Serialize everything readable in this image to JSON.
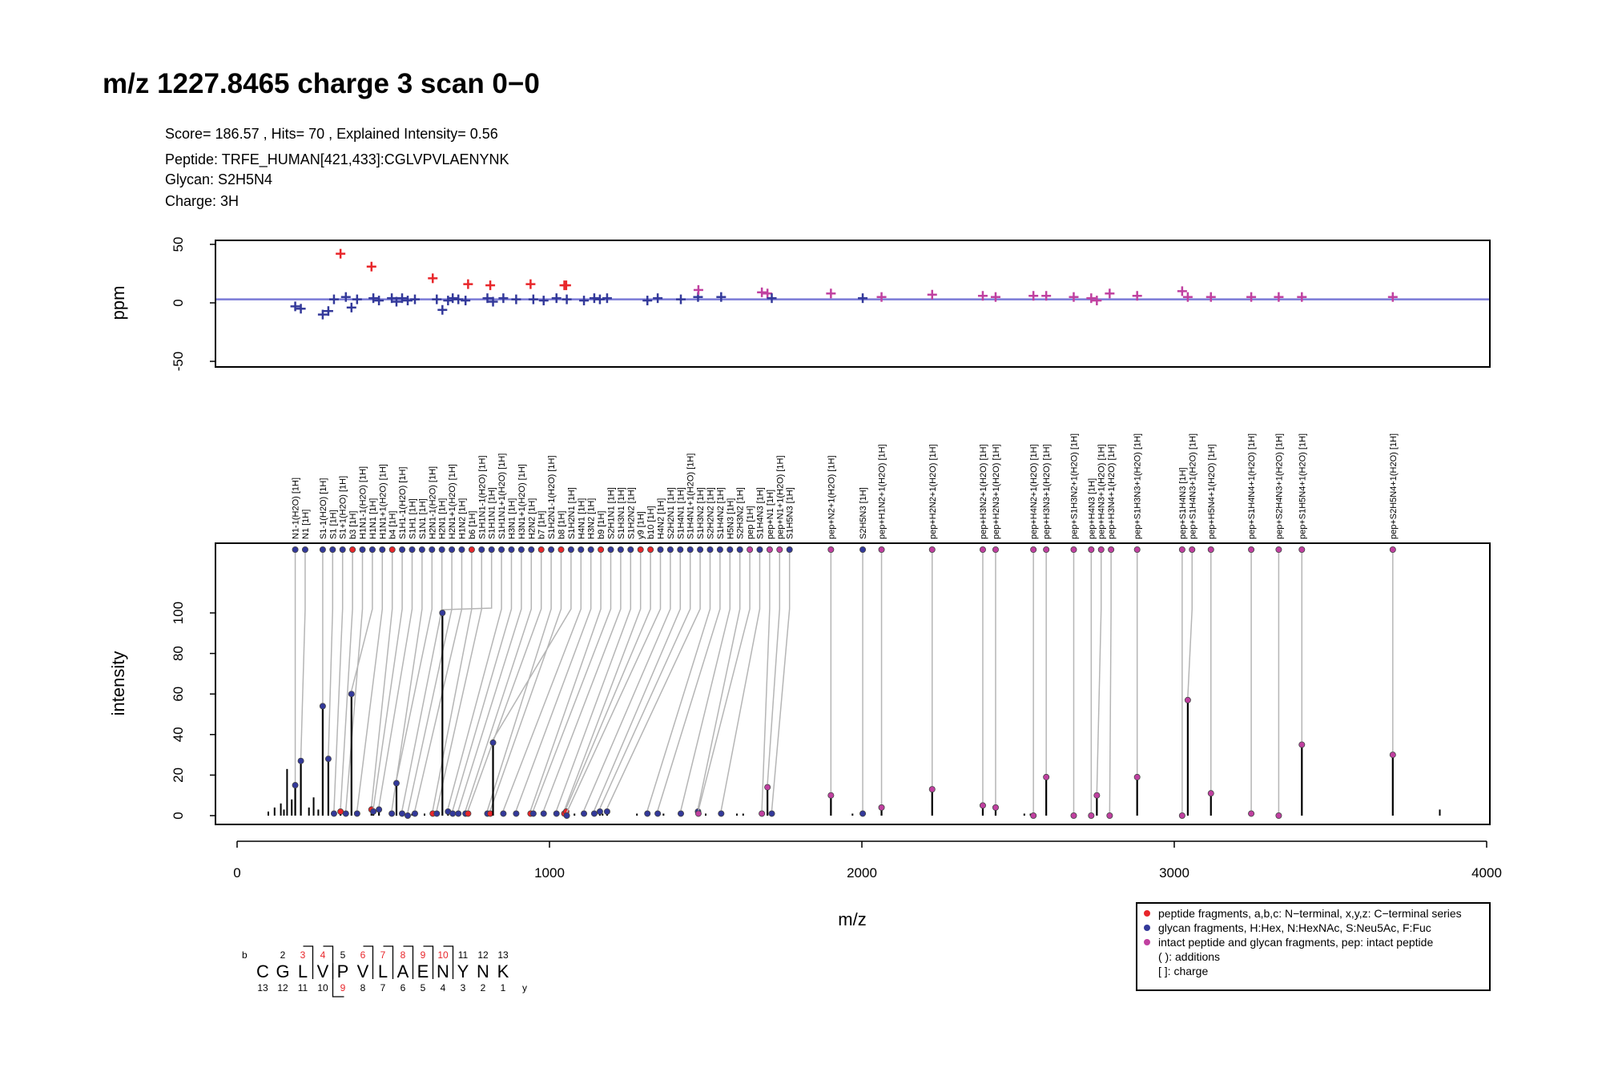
{
  "title": "m/z 1227.8465 charge 3 scan 0−0",
  "info": [
    "Score= 186.57 , Hits= 70 , Explained Intensity= 0.56",
    "Peptide: TRFE_HUMAN[421,433]:CGLVPVLAENYNK",
    "Glycan: S2H5N4",
    "Charge: 3H"
  ],
  "colors": {
    "peptide": "#e8262a",
    "glycan": "#33399a",
    "intact": "#c040a0",
    "connector": "#b5b5b5",
    "ppm_line": "#7a7ad6"
  },
  "chart_data": [
    {
      "type": "scatter",
      "ylabel": "ppm",
      "ylim": [
        -50,
        50
      ],
      "yticks": [
        "-50",
        "0",
        "50"
      ],
      "xlim": [
        0,
        4000
      ],
      "reference_line_ppm": 3
    },
    {
      "type": "bar",
      "xlabel": "m/z",
      "ylabel": "intensity",
      "xlim": [
        0,
        4000
      ],
      "ylim": [
        0,
        100
      ],
      "xticks": [
        "0",
        "1000",
        "2000",
        "3000",
        "4000"
      ],
      "yticks": [
        "0",
        "20",
        "40",
        "60",
        "80",
        "100"
      ],
      "annotations": [
        {
          "label": "N1-1(H2O) [1H]",
          "mz": 186.08,
          "intensity": 15,
          "ppm": -3,
          "type": "glycan"
        },
        {
          "label": "N1 [1H]",
          "mz": 204.09,
          "intensity": 27,
          "ppm": -5,
          "type": "glycan"
        },
        {
          "label": "S1-1(H2O) [1H]",
          "mz": 274.09,
          "intensity": 54,
          "ppm": -10,
          "type": "glycan"
        },
        {
          "label": "S1 [1H]",
          "mz": 292.1,
          "intensity": 28,
          "ppm": -7,
          "type": "glycan"
        },
        {
          "label": "S1+1(H2O) [1H]",
          "mz": 310.11,
          "intensity": 1,
          "ppm": 3,
          "type": "glycan"
        },
        {
          "label": "b3 [1H]",
          "mz": 331.13,
          "intensity": 2,
          "ppm": 42,
          "type": "peptide"
        },
        {
          "label": "H1N1-1(H2O) [1H]",
          "mz": 348.13,
          "intensity": 1,
          "ppm": 5,
          "type": "glycan"
        },
        {
          "label": "H1N1 [1H]",
          "mz": 366.14,
          "intensity": 60,
          "ppm": -4,
          "type": "glycan"
        },
        {
          "label": "H1N1+1(H2O) [1H]",
          "mz": 384.15,
          "intensity": 1,
          "ppm": 3,
          "type": "glycan"
        },
        {
          "label": "b4 [1H]",
          "mz": 430.2,
          "intensity": 3,
          "ppm": 31,
          "type": "peptide"
        },
        {
          "label": "S1H1-1(H2O) [1H]",
          "mz": 436.15,
          "intensity": 2,
          "ppm": 4,
          "type": "glycan"
        },
        {
          "label": "S1H1 [1H]",
          "mz": 454.16,
          "intensity": 3,
          "ppm": 2,
          "type": "glycan"
        },
        {
          "label": "S1N1 [1H]",
          "mz": 495.18,
          "intensity": 1,
          "ppm": 4,
          "type": "glycan"
        },
        {
          "label": "H2N1-1(H2O) [1H]",
          "mz": 510.18,
          "intensity": 16,
          "ppm": 1,
          "type": "glycan"
        },
        {
          "label": "H2N1 [1H]",
          "mz": 528.19,
          "intensity": 1,
          "ppm": 4,
          "type": "glycan"
        },
        {
          "label": "H2N1+1(H2O) [1H]",
          "mz": 546.2,
          "intensity": 0,
          "ppm": 2,
          "type": "glycan"
        },
        {
          "label": "H1N2 [1H]",
          "mz": 569.21,
          "intensity": 1,
          "ppm": 3,
          "type": "glycan"
        },
        {
          "label": "b6 [1H]",
          "mz": 626.33,
          "intensity": 1,
          "ppm": 21,
          "type": "peptide"
        },
        {
          "label": "S1H1N1-1(H2O) [1H]",
          "mz": 639.21,
          "intensity": 1,
          "ppm": 3,
          "type": "glycan"
        },
        {
          "label": "S1H1N1 [1H]",
          "mz": 657.23,
          "intensity": 100,
          "ppm": -6,
          "type": "glycan"
        },
        {
          "label": "S1H1N1+1(H2O) [1H]",
          "mz": 675.24,
          "intensity": 2,
          "ppm": 2,
          "type": "glycan"
        },
        {
          "label": "H3N1 [1H]",
          "mz": 690.24,
          "intensity": 1,
          "ppm": 4,
          "type": "glycan"
        },
        {
          "label": "H3N1+1(H2O) [1H]",
          "mz": 708.25,
          "intensity": 1,
          "ppm": 3,
          "type": "glycan"
        },
        {
          "label": "H2N2 [1H]",
          "mz": 731.27,
          "intensity": 1,
          "ppm": 2,
          "type": "glycan"
        },
        {
          "label": "b7 [1H]",
          "mz": 739.41,
          "intensity": 1,
          "ppm": 16,
          "type": "peptide"
        },
        {
          "label": "S1H2N1-1(H2O) [1H]",
          "mz": 801.27,
          "intensity": 1,
          "ppm": 4,
          "type": "glycan"
        },
        {
          "label": "b8 [1H]",
          "mz": 810.45,
          "intensity": 1,
          "ppm": 15,
          "type": "peptide"
        },
        {
          "label": "S1H2N1 [1H]",
          "mz": 819.28,
          "intensity": 36,
          "ppm": 1,
          "type": "glycan"
        },
        {
          "label": "H4N1 [1H]",
          "mz": 852.3,
          "intensity": 1,
          "ppm": 4,
          "type": "glycan"
        },
        {
          "label": "H3N2 [1H]",
          "mz": 893.32,
          "intensity": 1,
          "ppm": 3,
          "type": "glycan"
        },
        {
          "label": "b9 [1H]",
          "mz": 939.49,
          "intensity": 1,
          "ppm": 16,
          "type": "peptide"
        },
        {
          "label": "S2H1N1 [1H]",
          "mz": 948.32,
          "intensity": 1,
          "ppm": 3,
          "type": "glycan"
        },
        {
          "label": "S1H3N1 [1H]",
          "mz": 981.34,
          "intensity": 1,
          "ppm": 2,
          "type": "glycan"
        },
        {
          "label": "S1H2N2 [1H]",
          "mz": 1022.36,
          "intensity": 1,
          "ppm": 4,
          "type": "glycan"
        },
        {
          "label": "y9 [1H]",
          "mz": 1047.57,
          "intensity": 1,
          "ppm": 15,
          "type": "peptide"
        },
        {
          "label": "b10 [1H]",
          "mz": 1053.53,
          "intensity": 2,
          "ppm": 15,
          "type": "peptide"
        },
        {
          "label": "H4N2 [1H]",
          "mz": 1055.38,
          "intensity": 0,
          "ppm": 3,
          "type": "glycan"
        },
        {
          "label": "S2H2N1 [1H]",
          "mz": 1110.38,
          "intensity": 1,
          "ppm": 2,
          "type": "glycan"
        },
        {
          "label": "S1H4N1 [1H]",
          "mz": 1143.39,
          "intensity": 1,
          "ppm": 4,
          "type": "glycan"
        },
        {
          "label": "S1H4N1+1(H2O) [1H]",
          "mz": 1161.4,
          "intensity": 2,
          "ppm": 3,
          "type": "glycan"
        },
        {
          "label": "S1H3N2 [1H]",
          "mz": 1184.42,
          "intensity": 2,
          "ppm": 4,
          "type": "glycan"
        },
        {
          "label": "S2H2N2 [1H]",
          "mz": 1313.46,
          "intensity": 1,
          "ppm": 2,
          "type": "glycan"
        },
        {
          "label": "S1H4N2 [1H]",
          "mz": 1346.47,
          "intensity": 1,
          "ppm": 4,
          "type": "glycan"
        },
        {
          "label": "H5N3 [1H]",
          "mz": 1420.51,
          "intensity": 1,
          "ppm": 3,
          "type": "glycan"
        },
        {
          "label": "S2H3N2 [1H]",
          "mz": 1475.51,
          "intensity": 2,
          "ppm": 5,
          "type": "glycan"
        },
        {
          "label": "pep [1H]",
          "mz": 1476.73,
          "intensity": 1,
          "ppm": 11,
          "type": "intact"
        },
        {
          "label": "S1H4N3 [1H]",
          "mz": 1549.55,
          "intensity": 1,
          "ppm": 5,
          "type": "glycan"
        },
        {
          "label": "pep+N1 [1H]",
          "mz": 1679.81,
          "intensity": 1,
          "ppm": 9,
          "type": "intact"
        },
        {
          "label": "pep+N1+1(H2O) [1H]",
          "mz": 1697.82,
          "intensity": 14,
          "ppm": 8,
          "type": "intact"
        },
        {
          "label": "S1H5N3 [1H]",
          "mz": 1711.6,
          "intensity": 1,
          "ppm": 4,
          "type": "glycan"
        },
        {
          "label": "pep+N2+1(H2O) [1H]",
          "mz": 1900.9,
          "intensity": 10,
          "ppm": 8,
          "type": "intact"
        },
        {
          "label": "S2H5N3 [1H]",
          "mz": 2002.7,
          "intensity": 1,
          "ppm": 4,
          "type": "glycan"
        },
        {
          "label": "pep+H1N2+1(H2O) [1H]",
          "mz": 2062.95,
          "intensity": 4,
          "ppm": 5,
          "type": "intact"
        },
        {
          "label": "pep+H2N2+1(H2O) [1H]",
          "mz": 2225.0,
          "intensity": 13,
          "ppm": 7,
          "type": "intact"
        },
        {
          "label": "pep+H3N2+1(H2O) [1H]",
          "mz": 2387.06,
          "intensity": 5,
          "ppm": 6,
          "type": "intact"
        },
        {
          "label": "pep+H2N3+1(H2O) [1H]",
          "mz": 2428.08,
          "intensity": 4,
          "ppm": 5,
          "type": "intact"
        },
        {
          "label": "pep+H4N2+1(H2O) [1H]",
          "mz": 2549.11,
          "intensity": 0,
          "ppm": 6,
          "type": "intact"
        },
        {
          "label": "pep+H3N3+1(H2O) [1H]",
          "mz": 2590.14,
          "intensity": 19,
          "ppm": 6,
          "type": "intact"
        },
        {
          "label": "pep+S1H3N2+1(H2O) [1H]",
          "mz": 2678.16,
          "intensity": 0,
          "ppm": 5,
          "type": "intact"
        },
        {
          "label": "pep+H4N3 [1H]",
          "mz": 2734.17,
          "intensity": 0,
          "ppm": 4,
          "type": "intact"
        },
        {
          "label": "pep+H4N3+1(H2O) [1H]",
          "mz": 2752.19,
          "intensity": 10,
          "ppm": 2,
          "type": "intact"
        },
        {
          "label": "pep+H3N4+1(H2O) [1H]",
          "mz": 2793.22,
          "intensity": 0,
          "ppm": 8,
          "type": "intact"
        },
        {
          "label": "pep+S1H3N3+1(H2O) [1H]",
          "mz": 2881.24,
          "intensity": 19,
          "ppm": 6,
          "type": "intact"
        },
        {
          "label": "pep+S1H4N3 [1H]",
          "mz": 3025.28,
          "intensity": 0,
          "ppm": 10,
          "type": "intact"
        },
        {
          "label": "pep+S1H4N3+1(H2O) [1H]",
          "mz": 3043.3,
          "intensity": 57,
          "ppm": 5,
          "type": "intact"
        },
        {
          "label": "pep+H5N4+1(H2O) [1H]",
          "mz": 3117.33,
          "intensity": 11,
          "ppm": 5,
          "type": "intact"
        },
        {
          "label": "pep+S1H4N4+1(H2O) [1H]",
          "mz": 3246.37,
          "intensity": 1,
          "ppm": 5,
          "type": "intact"
        },
        {
          "label": "pep+S2H4N3+1(H2O) [1H]",
          "mz": 3334.38,
          "intensity": 0,
          "ppm": 5,
          "type": "intact"
        },
        {
          "label": "pep+S1H5N4+1(H2O) [1H]",
          "mz": 3408.43,
          "intensity": 35,
          "ppm": 5,
          "type": "intact"
        },
        {
          "label": "pep+S2H5N4+1(H2O) [1H]",
          "mz": 3699.52,
          "intensity": 30,
          "ppm": 5,
          "type": "intact"
        }
      ],
      "unannotated_peaks": [
        [
          100,
          2
        ],
        [
          120,
          4
        ],
        [
          140,
          6
        ],
        [
          150,
          3
        ],
        [
          160,
          23
        ],
        [
          175,
          8
        ],
        [
          230,
          4
        ],
        [
          245,
          9
        ],
        [
          260,
          3
        ],
        [
          380,
          1
        ],
        [
          560,
          1
        ],
        [
          600,
          1
        ],
        [
          1080,
          1
        ],
        [
          1170,
          1
        ],
        [
          1280,
          1
        ],
        [
          1365,
          1
        ],
        [
          1500,
          1
        ],
        [
          1600,
          1
        ],
        [
          1620,
          1
        ],
        [
          1970,
          1
        ],
        [
          2520,
          1
        ],
        [
          2540,
          1
        ],
        [
          2730,
          1
        ],
        [
          3850,
          3
        ]
      ]
    }
  ],
  "legend": [
    {
      "type": "peptide",
      "text": "peptide fragments, a,b,c: N−terminal, x,y,z: C−terminal series"
    },
    {
      "type": "glycan",
      "text": "glycan fragments, H:Hex, N:HexNAc, S:Neu5Ac, F:Fuc"
    },
    {
      "type": "intact",
      "text": "intact peptide and glycan fragments, pep: intact peptide"
    },
    {
      "type": "",
      "text": "( ): additions"
    },
    {
      "type": "",
      "text": "[ ]: charge"
    }
  ],
  "sequence": {
    "residues": [
      "C",
      "G",
      "L",
      "V",
      "P",
      "V",
      "L",
      "A",
      "E",
      "N",
      "Y",
      "N",
      "K"
    ],
    "b_label": "b",
    "y_label": "y",
    "b_matched": [
      3,
      4,
      6,
      7,
      8,
      9,
      10
    ],
    "y_matched": [
      9
    ]
  }
}
